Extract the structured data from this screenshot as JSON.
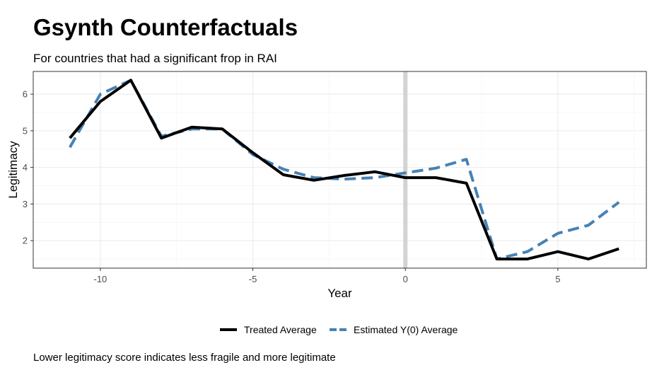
{
  "chart_data": {
    "type": "line",
    "title": "Gsynth Counterfactuals",
    "subtitle": "For countries that had a significant frop in RAI",
    "caption": "Lower legitimacy score indicates less fragile and more legitimate",
    "xlabel": "Year",
    "ylabel": "Legitimacy",
    "xlim": [
      -12.2,
      7.9
    ],
    "ylim": [
      1.25,
      6.62
    ],
    "x_ticks": [
      -10,
      -5,
      0,
      5
    ],
    "y_ticks": [
      2,
      3,
      4,
      5,
      6
    ],
    "grid": true,
    "legend_position": "bottom",
    "vline": {
      "x": 0,
      "color": "#d3d3d3"
    },
    "x": [
      -11,
      -10,
      -9,
      -8,
      -7,
      -6,
      -5,
      -4,
      -3,
      -2,
      -1,
      0,
      1,
      2,
      3,
      4,
      5,
      6,
      7
    ],
    "series": [
      {
        "name": "Treated Average",
        "color": "#000000",
        "dash": "solid",
        "values": [
          4.8,
          5.8,
          6.38,
          4.8,
          5.1,
          5.05,
          4.4,
          3.8,
          3.65,
          3.78,
          3.88,
          3.72,
          3.72,
          3.57,
          1.5,
          1.5,
          1.7,
          1.5,
          1.78
        ]
      },
      {
        "name": "Estimated Y(0) Average",
        "color": "#4682b4",
        "dash": "dashed",
        "values": [
          4.55,
          6.0,
          6.38,
          4.85,
          5.05,
          5.05,
          4.35,
          3.95,
          3.72,
          3.68,
          3.72,
          3.85,
          3.98,
          4.22,
          1.5,
          1.7,
          2.2,
          2.42,
          3.05
        ]
      }
    ]
  }
}
